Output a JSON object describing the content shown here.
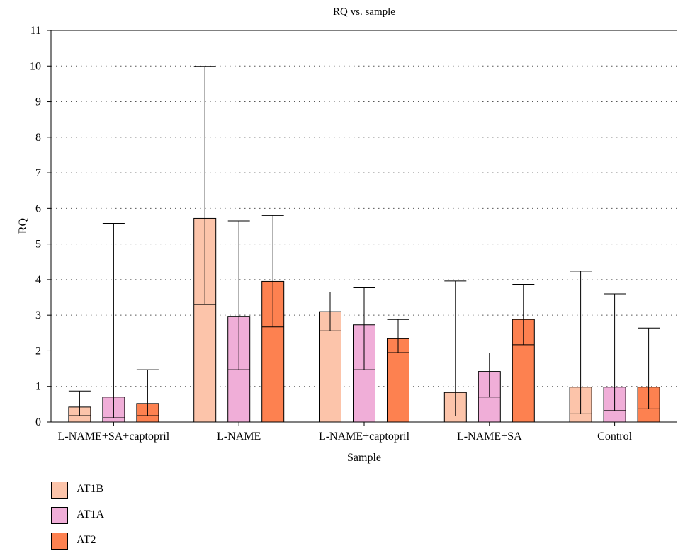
{
  "chart_data": {
    "type": "bar",
    "title": "RQ vs. sample",
    "xlabel": "Sample",
    "ylabel": "RQ",
    "ylim": [
      0,
      11
    ],
    "yticks": [
      0,
      1,
      2,
      3,
      4,
      5,
      6,
      7,
      8,
      9,
      10,
      11
    ],
    "grid": true,
    "legend_position": "bottom-left",
    "categories": [
      "L-NAME+SA+captopril",
      "L-NAME",
      "L-NAME+captopril",
      "L-NAME+SA",
      "Control"
    ],
    "series": [
      {
        "name": "AT1B",
        "color": "#fcc4aa",
        "values": [
          0.42,
          5.72,
          3.1,
          0.83,
          0.98
        ],
        "low": [
          0.18,
          3.3,
          2.56,
          0.17,
          0.23
        ],
        "high": [
          0.87,
          9.99,
          3.65,
          3.96,
          4.24
        ]
      },
      {
        "name": "AT1A",
        "color": "#f0aed8",
        "values": [
          0.7,
          2.97,
          2.73,
          1.42,
          0.98
        ],
        "low": [
          0.12,
          1.47,
          1.47,
          0.7,
          0.32
        ],
        "high": [
          5.58,
          5.65,
          3.77,
          1.94,
          3.6
        ]
      },
      {
        "name": "AT2",
        "color": "#fd8150",
        "values": [
          0.52,
          3.95,
          2.34,
          2.88,
          0.98
        ],
        "low": [
          0.18,
          2.67,
          1.95,
          2.17,
          0.37
        ],
        "high": [
          1.47,
          5.8,
          2.88,
          3.87,
          2.64
        ]
      }
    ]
  }
}
